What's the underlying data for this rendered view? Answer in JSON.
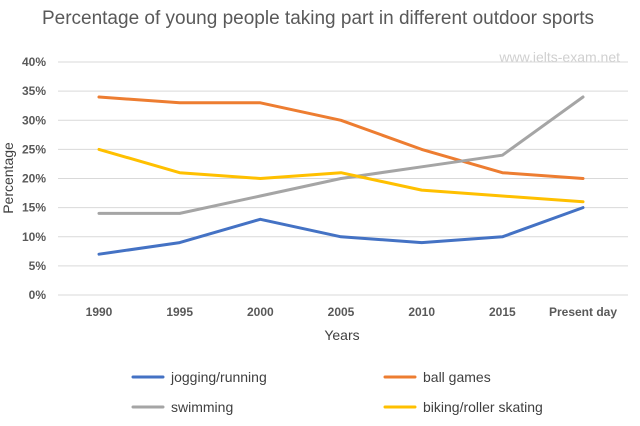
{
  "chart_data": {
    "type": "line",
    "title": "Percentage of young people taking part in different outdoor sports",
    "watermark": "www.ielts-exam.net",
    "xlabel": "Years",
    "ylabel": "Percentage",
    "categories": [
      "1990",
      "1995",
      "2000",
      "2005",
      "2010",
      "2015",
      "Present day"
    ],
    "ylim": [
      0,
      40
    ],
    "yticks": [
      0,
      5,
      10,
      15,
      20,
      25,
      30,
      35,
      40
    ],
    "ytick_suffix": "%",
    "grid": true,
    "legend_position": "bottom",
    "series": [
      {
        "name": "jogging/running",
        "color": "#4472C4",
        "values": [
          7,
          9,
          13,
          10,
          9,
          10,
          15
        ]
      },
      {
        "name": "ball games",
        "color": "#ED7D31",
        "values": [
          34,
          33,
          33,
          30,
          25,
          21,
          20
        ]
      },
      {
        "name": "swimming",
        "color": "#A5A5A5",
        "values": [
          14,
          14,
          17,
          20,
          22,
          24,
          34
        ]
      },
      {
        "name": "biking/roller skating",
        "color": "#FFC000",
        "values": [
          25,
          21,
          20,
          21,
          18,
          17,
          16
        ]
      }
    ]
  }
}
